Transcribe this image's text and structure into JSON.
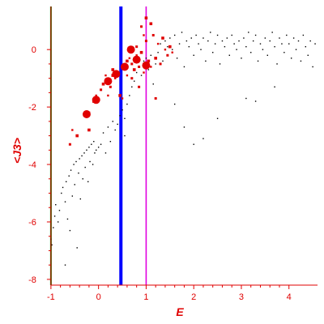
{
  "chart_data": {
    "type": "scatter",
    "xlabel": "E",
    "ylabel": "<J3>",
    "xlim": [
      -1.1,
      4.6
    ],
    "ylim": [
      -8.2,
      1.5
    ],
    "x_ticks": [
      "-1",
      "0",
      "1",
      "2",
      "3",
      "4"
    ],
    "x_tick_values": [
      -1,
      0,
      1,
      2,
      3,
      4
    ],
    "y_ticks": [
      "-8",
      "-6",
      "-4",
      "-2",
      "0"
    ],
    "y_tick_values": [
      -8,
      -6,
      -4,
      -2,
      0
    ],
    "grid": false,
    "axis_color": "#e00000",
    "vertical_lines": [
      {
        "x": -1.0,
        "color": "#008000"
      },
      {
        "x": 0.47,
        "color": "#0000ff"
      },
      {
        "x": 1.0,
        "color": "#e000e0"
      }
    ],
    "series": [
      {
        "color": "#000000",
        "points": [
          [
            -1.0,
            -6.6
          ],
          [
            -0.98,
            -6.8
          ],
          [
            -0.95,
            -6.2
          ],
          [
            -0.92,
            -5.8
          ],
          [
            -0.9,
            -5.4
          ],
          [
            -0.85,
            -6.0
          ],
          [
            -0.82,
            -5.6
          ],
          [
            -0.78,
            -5.0
          ],
          [
            -0.75,
            -4.8
          ],
          [
            -0.7,
            -5.3
          ],
          [
            -0.68,
            -4.6
          ],
          [
            -0.65,
            -5.9
          ],
          [
            -0.62,
            -4.4
          ],
          [
            -0.6,
            -6.3
          ],
          [
            -0.58,
            -4.2
          ],
          [
            -0.55,
            -5.1
          ],
          [
            -0.52,
            -4.0
          ],
          [
            -0.5,
            -4.7
          ],
          [
            -0.47,
            -3.9
          ],
          [
            -0.45,
            -6.9
          ],
          [
            -0.42,
            -4.3
          ],
          [
            -0.4,
            -3.8
          ],
          [
            -0.38,
            -5.2
          ],
          [
            -0.35,
            -3.7
          ],
          [
            -0.33,
            -4.5
          ],
          [
            -0.3,
            -3.6
          ],
          [
            -0.28,
            -4.1
          ],
          [
            -0.25,
            -3.5
          ],
          [
            -0.22,
            -4.6
          ],
          [
            -0.2,
            -3.4
          ],
          [
            -0.18,
            -3.9
          ],
          [
            -0.15,
            -3.3
          ],
          [
            -0.12,
            -4.0
          ],
          [
            -0.1,
            -3.2
          ],
          [
            -0.08,
            -3.6
          ],
          [
            -0.05,
            -3.5
          ],
          [
            0.0,
            -3.4
          ],
          [
            0.05,
            -3.3
          ],
          [
            0.1,
            -2.9
          ],
          [
            0.15,
            -3.6
          ],
          [
            0.2,
            -2.7
          ],
          [
            0.25,
            -3.2
          ],
          [
            0.3,
            -2.5
          ],
          [
            0.35,
            -2.8
          ],
          [
            0.4,
            -2.6
          ],
          [
            0.45,
            -2.3
          ],
          [
            0.5,
            -2.1
          ],
          [
            0.55,
            -2.4
          ],
          [
            0.6,
            -1.9
          ],
          [
            0.65,
            -1.6
          ],
          [
            0.7,
            -1.3
          ],
          [
            0.75,
            -1.1
          ],
          [
            0.8,
            -0.8
          ],
          [
            0.85,
            -0.6
          ],
          [
            0.9,
            -0.9
          ],
          [
            0.95,
            -0.4
          ],
          [
            1.0,
            -0.3
          ],
          [
            1.05,
            -0.7
          ],
          [
            1.1,
            -0.2
          ],
          [
            1.15,
            -1.2
          ],
          [
            1.2,
            -0.5
          ],
          [
            1.25,
            -0.1
          ],
          [
            1.3,
            0.2
          ],
          [
            1.35,
            -0.4
          ],
          [
            1.4,
            0.3
          ],
          [
            1.45,
            0.1
          ],
          [
            1.5,
            0.4
          ],
          [
            1.55,
            0.0
          ],
          [
            1.6,
            0.5
          ],
          [
            1.65,
            -0.3
          ],
          [
            1.7,
            0.2
          ],
          [
            1.75,
            0.6
          ],
          [
            1.8,
            -0.6
          ],
          [
            1.85,
            0.3
          ],
          [
            1.9,
            0.1
          ],
          [
            1.95,
            0.4
          ],
          [
            2.0,
            -0.2
          ],
          [
            2.05,
            0.5
          ],
          [
            2.1,
            0.2
          ],
          [
            2.15,
            0.0
          ],
          [
            2.2,
            0.4
          ],
          [
            2.25,
            -0.4
          ],
          [
            2.3,
            0.3
          ],
          [
            2.35,
            0.6
          ],
          [
            2.4,
            -0.1
          ],
          [
            2.45,
            0.2
          ],
          [
            2.5,
            0.5
          ],
          [
            2.55,
            -0.5
          ],
          [
            2.6,
            0.3
          ],
          [
            2.65,
            0.1
          ],
          [
            2.7,
            0.4
          ],
          [
            2.75,
            -0.2
          ],
          [
            2.8,
            0.5
          ],
          [
            2.85,
            0.2
          ],
          [
            2.9,
            0.0
          ],
          [
            2.95,
            0.3
          ],
          [
            3.0,
            -0.3
          ],
          [
            3.05,
            0.4
          ],
          [
            3.1,
            0.1
          ],
          [
            3.15,
            0.6
          ],
          [
            3.2,
            -0.1
          ],
          [
            3.25,
            0.3
          ],
          [
            3.3,
            0.5
          ],
          [
            3.35,
            -0.4
          ],
          [
            3.4,
            0.2
          ],
          [
            3.45,
            0.0
          ],
          [
            3.5,
            0.4
          ],
          [
            3.55,
            -0.2
          ],
          [
            3.6,
            0.3
          ],
          [
            3.65,
            0.6
          ],
          [
            3.7,
            0.1
          ],
          [
            3.75,
            -0.5
          ],
          [
            3.8,
            0.4
          ],
          [
            3.85,
            0.2
          ],
          [
            3.9,
            -0.1
          ],
          [
            3.95,
            0.5
          ],
          [
            4.0,
            0.2
          ],
          [
            4.05,
            -0.3
          ],
          [
            4.1,
            0.4
          ],
          [
            4.15,
            0.0
          ],
          [
            4.2,
            0.3
          ],
          [
            4.25,
            -0.4
          ],
          [
            4.3,
            0.5
          ],
          [
            4.35,
            0.1
          ],
          [
            4.4,
            -0.2
          ],
          [
            4.45,
            0.3
          ],
          [
            4.5,
            -0.6
          ],
          [
            4.55,
            0.2
          ],
          [
            1.6,
            -1.9
          ],
          [
            1.8,
            -2.7
          ],
          [
            2.0,
            -3.3
          ],
          [
            2.2,
            -3.1
          ],
          [
            2.5,
            -2.4
          ],
          [
            3.1,
            -1.7
          ],
          [
            3.3,
            -1.8
          ],
          [
            3.7,
            -1.3
          ],
          [
            -0.7,
            -7.5
          ],
          [
            0.55,
            -3.0
          ]
        ]
      },
      {
        "color": "#e00000",
        "points": [
          [
            -0.3,
            -2.3
          ],
          [
            -0.2,
            -2.2
          ],
          [
            -0.1,
            -1.8
          ],
          [
            -0.05,
            -1.6
          ],
          [
            0.05,
            -1.4
          ],
          [
            0.1,
            -1.2
          ],
          [
            0.2,
            -1.1
          ],
          [
            0.25,
            -1.3
          ],
          [
            0.3,
            -0.9
          ],
          [
            0.35,
            -1.0
          ],
          [
            0.4,
            -0.8
          ],
          [
            0.45,
            -1.6
          ],
          [
            0.5,
            -1.7
          ],
          [
            0.55,
            -0.6
          ],
          [
            0.6,
            -0.4
          ],
          [
            0.65,
            -0.3
          ],
          [
            0.7,
            -0.5
          ],
          [
            0.75,
            -0.7
          ],
          [
            0.8,
            -0.2
          ],
          [
            0.85,
            -0.6
          ],
          [
            0.9,
            -0.1
          ],
          [
            0.95,
            -0.8
          ],
          [
            1.0,
            0.3
          ],
          [
            1.05,
            -0.4
          ],
          [
            1.1,
            -0.6
          ],
          [
            1.15,
            0.5
          ],
          [
            1.2,
            -0.3
          ],
          [
            1.25,
            0.2
          ],
          [
            1.3,
            -0.5
          ],
          [
            1.35,
            0.4
          ],
          [
            1.4,
            0.0
          ],
          [
            1.45,
            -0.2
          ],
          [
            1.5,
            0.1
          ],
          [
            1.55,
            -0.1
          ],
          [
            0.9,
            0.8
          ],
          [
            1.0,
            1.1
          ],
          [
            0.95,
            0.5
          ],
          [
            0.7,
            -1.0
          ],
          [
            -0.45,
            -3.0
          ],
          [
            -0.55,
            -2.8
          ],
          [
            -0.6,
            -3.3
          ],
          [
            -0.2,
            -2.8
          ],
          [
            0.2,
            -1.6
          ],
          [
            0.8,
            0.1
          ],
          [
            1.1,
            0.9
          ],
          [
            0.6,
            -0.9
          ],
          [
            1.2,
            -1.7
          ],
          [
            0.3,
            -0.7
          ],
          [
            0.15,
            -0.9
          ],
          [
            0.85,
            -1.3
          ]
        ]
      },
      {
        "color": "#e00000",
        "points": [
          [
            -0.05,
            -1.75
          ],
          [
            0.2,
            -1.1
          ],
          [
            0.37,
            -0.85
          ],
          [
            -0.25,
            -2.25
          ],
          [
            0.68,
            0.0
          ],
          [
            1.0,
            -0.55
          ],
          [
            0.8,
            -0.35
          ],
          [
            0.55,
            -0.6
          ]
        ]
      }
    ]
  }
}
